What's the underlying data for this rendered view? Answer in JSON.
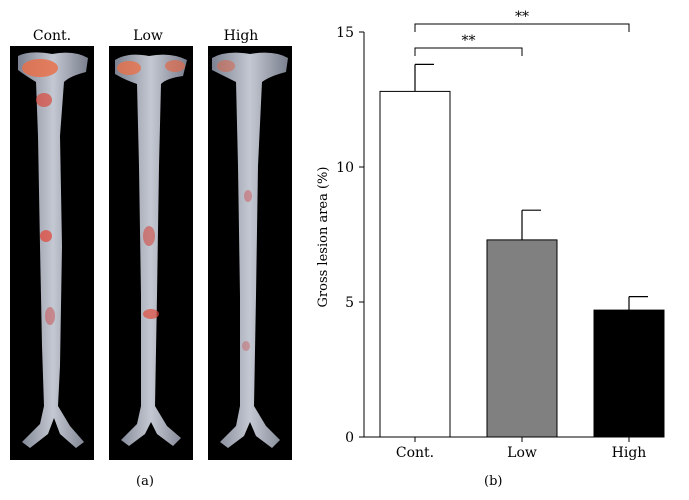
{
  "panel_a": {
    "label": "(a)",
    "samples": [
      "Cont.",
      "Low",
      "High"
    ]
  },
  "panel_b": {
    "label": "(b)"
  },
  "chart_data": {
    "type": "bar",
    "title": "",
    "xlabel": "",
    "ylabel": "Gross lesion area (%)",
    "ylim": [
      0,
      15
    ],
    "yticks": [
      0,
      5,
      10,
      15
    ],
    "categories": [
      "Cont.",
      "Low",
      "High"
    ],
    "values": [
      12.8,
      7.3,
      4.7
    ],
    "errors": [
      1.0,
      1.1,
      0.5
    ],
    "bar_colors": [
      "#ffffff",
      "#808080",
      "#000000"
    ],
    "significance": [
      {
        "from": "Cont.",
        "to": "Low",
        "label": "**"
      },
      {
        "from": "Cont.",
        "to": "High",
        "label": "**"
      }
    ],
    "grid": false,
    "legend": "none"
  }
}
